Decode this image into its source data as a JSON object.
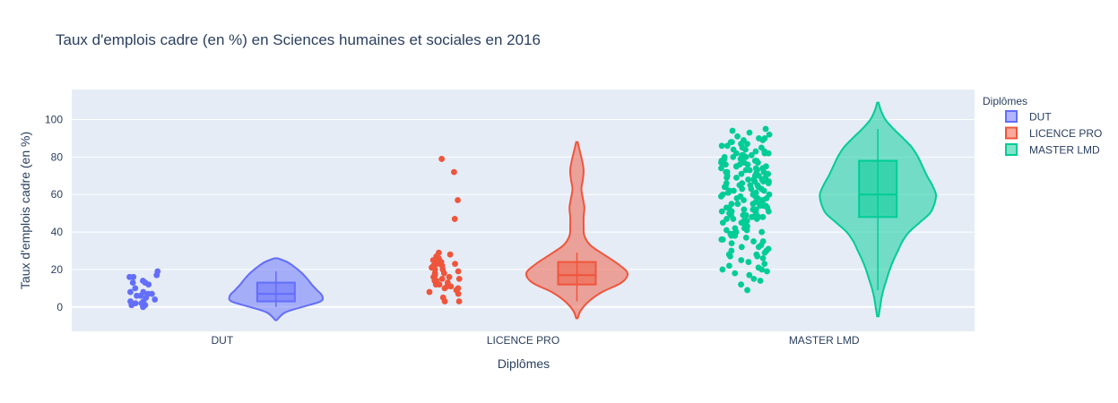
{
  "chart_data": {
    "type": "violin",
    "title": "Taux d'emplois cadre (en %) en Sciences humaines et sociales en 2016",
    "xlabel": "Diplômes",
    "ylabel": "Taux d'emplois cadre (en %)",
    "ylim": [
      -13,
      116
    ],
    "yticks": [
      0,
      20,
      40,
      60,
      80,
      100
    ],
    "categories": [
      "DUT",
      "LICENCE PRO",
      "MASTER LMD"
    ],
    "legend": {
      "title": "Diplômes",
      "position": "top-right"
    },
    "colors": {
      "plot_bg": "#e5ecf6",
      "grid": "#ffffff",
      "text": "#2a3f5f"
    },
    "series": [
      {
        "name": "DUT",
        "color": "#636efa",
        "fill": "rgba(99,110,250,0.5)",
        "box": {
          "q1": 3,
          "median": 7,
          "q3": 13,
          "whisker_low": 0,
          "whisker_high": 19
        },
        "violin_range": [
          -7,
          26
        ],
        "density": [
          [
            -7,
            0.01
          ],
          [
            -3,
            0.12
          ],
          [
            0,
            0.35
          ],
          [
            3,
            0.6
          ],
          [
            6,
            0.62
          ],
          [
            9,
            0.55
          ],
          [
            12,
            0.48
          ],
          [
            15,
            0.42
          ],
          [
            18,
            0.35
          ],
          [
            21,
            0.26
          ],
          [
            24,
            0.15
          ],
          [
            26,
            0.02
          ]
        ],
        "points": [
          0,
          1,
          1,
          2,
          2,
          3,
          3,
          4,
          5,
          6,
          6,
          7,
          7,
          8,
          8,
          10,
          12,
          13,
          13,
          14,
          16,
          16,
          17,
          19
        ]
      },
      {
        "name": "LICENCE PRO",
        "color": "#ef553b",
        "fill": "rgba(239,85,59,0.5)",
        "box": {
          "q1": 12,
          "median": 17,
          "q3": 24,
          "whisker_low": 3,
          "whisker_high": 29
        },
        "violin_range": [
          -6,
          88
        ],
        "density": [
          [
            -6,
            0.01
          ],
          [
            -2,
            0.05
          ],
          [
            3,
            0.16
          ],
          [
            8,
            0.34
          ],
          [
            13,
            0.6
          ],
          [
            18,
            0.68
          ],
          [
            23,
            0.55
          ],
          [
            28,
            0.36
          ],
          [
            33,
            0.18
          ],
          [
            38,
            0.1
          ],
          [
            43,
            0.09
          ],
          [
            48,
            0.09
          ],
          [
            53,
            0.1
          ],
          [
            58,
            0.08
          ],
          [
            63,
            0.06
          ],
          [
            68,
            0.08
          ],
          [
            73,
            0.09
          ],
          [
            78,
            0.07
          ],
          [
            83,
            0.04
          ],
          [
            88,
            0.01
          ]
        ],
        "points": [
          3,
          3,
          5,
          7,
          8,
          9,
          10,
          10,
          11,
          11,
          12,
          12,
          13,
          14,
          14,
          15,
          15,
          16,
          16,
          17,
          18,
          18,
          19,
          20,
          20,
          21,
          21,
          22,
          22,
          23,
          23,
          24,
          24,
          25,
          26,
          27,
          28,
          29,
          47,
          57,
          72,
          79
        ]
      },
      {
        "name": "MASTER LMD",
        "color": "#00cc96",
        "fill": "rgba(0,204,150,0.5)",
        "box": {
          "q1": 48,
          "median": 60,
          "q3": 78,
          "whisker_low": 9,
          "whisker_high": 95
        },
        "violin_range": [
          -5,
          109
        ],
        "density": [
          [
            -5,
            0.01
          ],
          [
            0,
            0.03
          ],
          [
            5,
            0.05
          ],
          [
            10,
            0.08
          ],
          [
            15,
            0.12
          ],
          [
            20,
            0.16
          ],
          [
            25,
            0.21
          ],
          [
            30,
            0.27
          ],
          [
            35,
            0.33
          ],
          [
            40,
            0.42
          ],
          [
            45,
            0.56
          ],
          [
            50,
            0.7
          ],
          [
            55,
            0.76
          ],
          [
            60,
            0.78
          ],
          [
            65,
            0.73
          ],
          [
            70,
            0.66
          ],
          [
            75,
            0.6
          ],
          [
            80,
            0.54
          ],
          [
            85,
            0.46
          ],
          [
            90,
            0.34
          ],
          [
            95,
            0.21
          ],
          [
            100,
            0.1
          ],
          [
            105,
            0.04
          ],
          [
            109,
            0.01
          ]
        ],
        "points": [
          9,
          12,
          14,
          15,
          17,
          18,
          19,
          20,
          20,
          21,
          22,
          23,
          24,
          25,
          26,
          27,
          27,
          28,
          28,
          29,
          30,
          30,
          31,
          32,
          32,
          33,
          34,
          35,
          35,
          36,
          36,
          37,
          38,
          38,
          39,
          39,
          40,
          40,
          41,
          41,
          42,
          42,
          43,
          43,
          44,
          44,
          45,
          45,
          45,
          46,
          46,
          47,
          47,
          47,
          48,
          48,
          48,
          49,
          49,
          49,
          50,
          50,
          50,
          51,
          51,
          51,
          52,
          52,
          52,
          53,
          53,
          53,
          54,
          54,
          54,
          55,
          55,
          55,
          56,
          56,
          56,
          57,
          57,
          57,
          58,
          58,
          58,
          59,
          59,
          59,
          60,
          60,
          60,
          61,
          61,
          61,
          62,
          62,
          62,
          63,
          63,
          63,
          64,
          64,
          64,
          65,
          65,
          65,
          66,
          66,
          66,
          67,
          67,
          67,
          68,
          68,
          68,
          69,
          69,
          69,
          70,
          70,
          70,
          71,
          71,
          71,
          72,
          72,
          72,
          73,
          73,
          73,
          74,
          74,
          74,
          75,
          75,
          75,
          76,
          76,
          76,
          77,
          77,
          77,
          78,
          78,
          78,
          79,
          79,
          79,
          80,
          80,
          80,
          81,
          81,
          81,
          82,
          82,
          82,
          83,
          83,
          84,
          84,
          85,
          85,
          86,
          86,
          87,
          87,
          88,
          88,
          89,
          89,
          90,
          90,
          91,
          92,
          93,
          94,
          95
        ]
      }
    ]
  }
}
